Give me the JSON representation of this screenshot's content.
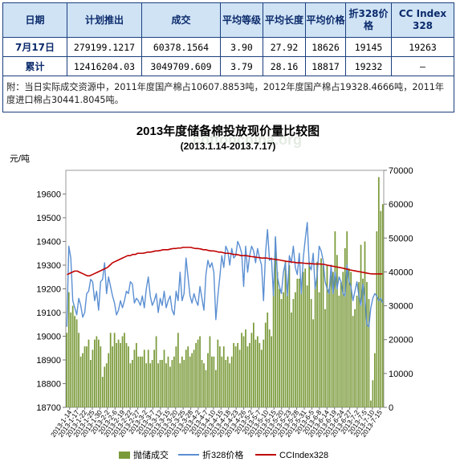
{
  "table": {
    "headers": [
      "日期",
      "计划推出",
      "成交",
      "平均等级",
      "平均长度",
      "平均价格",
      "折328价格",
      "CC Index 328"
    ],
    "rows": [
      {
        "label": "7月17日",
        "values": [
          "279199.1217",
          "60378.1564",
          "3.90",
          "27.92",
          "18626",
          "19145",
          "19263"
        ]
      },
      {
        "label": "累计",
        "values": [
          "12416204.03",
          "3049709.609",
          "3.79",
          "28.16",
          "18817",
          "19232",
          "–"
        ]
      }
    ],
    "note": "附：当日实际成交资源中，2011年度国产棉占10607.8853吨，2012年度国产棉占19328.4666吨，2011年度进口棉占30441.8045吨。"
  },
  "chart_data": {
    "type": "bar+line",
    "title": "2013年度储备棉投放现价量比较图",
    "subtitle": "(2013.1.14-2013.7.17)",
    "ylabel_left": "元/吨",
    "ylim_left": [
      18700,
      19700
    ],
    "yticks_left": [
      18700,
      18800,
      18900,
      19000,
      19100,
      19200,
      19300,
      19400,
      19500,
      19600
    ],
    "ylim_right": [
      0,
      70000
    ],
    "yticks_right": [
      0,
      10000,
      20000,
      30000,
      40000,
      50000,
      60000,
      70000
    ],
    "x_tick_labels": [
      "2013-1-14",
      "2013-1-17",
      "2013-1-22",
      "2013-1-25",
      "2013-1-30",
      "2013-2-2",
      "2013-2-6",
      "2013-2-19",
      "2013-2-22",
      "2013-2-27",
      "2013-3-2",
      "2013-3-7",
      "2013-3-12",
      "2013-3-15",
      "2013-3-20",
      "2013-3-25",
      "2013-3-28",
      "2013-4-2",
      "2013-4-7",
      "2013-4-10",
      "2013-4-15",
      "2013-4-18",
      "2013-4-23",
      "2013-4-26",
      "2013-5-2",
      "2013-5-7",
      "2013-5-10",
      "2013-5-15",
      "2013-5-20",
      "2013-5-23",
      "2013-5-28",
      "2013-5-31",
      "2013-6-5",
      "2013-6-8",
      "2013-6-14",
      "2013-6-19",
      "2013-6-24",
      "2013-6-27",
      "2013-7-2",
      "2013-7-5",
      "2013-7-10",
      "2013-7-15"
    ],
    "series": [
      {
        "name": "抛储成交",
        "type": "bar",
        "axis": "right",
        "values": [
          22000,
          34000,
          28000,
          30000,
          27000,
          26000,
          22000,
          15000,
          16000,
          18000,
          18000,
          20000,
          14000,
          17000,
          20000,
          21000,
          20000,
          18000,
          9000,
          12000,
          13000,
          16000,
          22000,
          18000,
          22000,
          19000,
          20000,
          19000,
          21000,
          22000,
          19000,
          18000,
          13000,
          14000,
          17000,
          19000,
          15000,
          15000,
          15000,
          17000,
          13000,
          17000,
          13000,
          14000,
          17000,
          21000,
          13000,
          14000,
          14000,
          17000,
          13000,
          15000,
          12000,
          14000,
          15000,
          18000,
          22000,
          13000,
          15000,
          14000,
          17000,
          18000,
          15000,
          16000,
          17000,
          19000,
          20000,
          21000,
          14000,
          13000,
          11000,
          16000,
          21000,
          15000,
          15000,
          11000,
          20000,
          18000,
          15000,
          18000,
          14000,
          15000,
          13000,
          15000,
          19000,
          18000,
          19000,
          17000,
          22000,
          21000,
          23000,
          18000,
          19000,
          22000,
          25000,
          20000,
          21000,
          19000,
          17000,
          20000,
          25000,
          28000,
          23000,
          21000,
          37000,
          50000,
          40000,
          35000,
          32000,
          34000,
          43000,
          33000,
          42000,
          28000,
          32000,
          34000,
          38000,
          38000,
          36000,
          40000,
          41000,
          36000,
          43000,
          32000,
          26000,
          37000,
          43000,
          34000,
          44000,
          42000,
          29000,
          42000,
          35000,
          39000,
          40000,
          52000,
          45000,
          33000,
          37000,
          40000,
          47000,
          52000,
          41000,
          40000,
          27000,
          29000,
          33000,
          37000,
          48000,
          38000,
          49000,
          37000,
          32000,
          2000,
          8000,
          16000,
          52000,
          68000,
          58000,
          60000
        ]
      },
      {
        "name": "折328价格",
        "type": "line",
        "axis": "left",
        "values": [
          19040,
          19380,
          19330,
          19150,
          19120,
          19090,
          19160,
          19130,
          19080,
          19100,
          19180,
          19190,
          19240,
          19230,
          19150,
          19190,
          19110,
          19230,
          19240,
          19310,
          19180,
          19250,
          19210,
          19170,
          19140,
          19090,
          19110,
          19150,
          19120,
          19150,
          19190,
          19180,
          19230,
          19220,
          19140,
          19160,
          19150,
          19130,
          19170,
          19120,
          19200,
          19250,
          19170,
          19130,
          19150,
          19180,
          19100,
          19160,
          19130,
          19190,
          19120,
          19150,
          19170,
          19110,
          19090,
          19190,
          19150,
          19270,
          19150,
          19180,
          19330,
          19250,
          19170,
          19140,
          19180,
          19150,
          19130,
          19210,
          19160,
          19110,
          19260,
          19320,
          19290,
          19310,
          19270,
          19070,
          19170,
          19250,
          19340,
          19290,
          19380,
          19360,
          19300,
          19370,
          19330,
          19340,
          19400,
          19380,
          19350,
          19210,
          19380,
          19270,
          19340,
          19380,
          19360,
          19310,
          19370,
          19330,
          19300,
          19150,
          19350,
          19450,
          19320,
          19330,
          19170,
          19420,
          19250,
          19210,
          19180,
          19270,
          19310,
          19170,
          19340,
          19310,
          19380,
          19290,
          19260,
          19350,
          19180,
          19330,
          19410,
          19480,
          19300,
          19280,
          19350,
          19200,
          19260,
          19380,
          19360,
          19320,
          19230,
          19200,
          19180,
          19300,
          19180,
          19270,
          19200,
          19250,
          19230,
          19180,
          19170,
          19300,
          19230,
          19210,
          19150,
          19190,
          19230,
          19170,
          19130,
          19220,
          19160,
          19050,
          19040,
          19120,
          19160,
          19180,
          19170,
          19150,
          19160,
          19140
        ]
      },
      {
        "name": "CCIndex328",
        "type": "line",
        "axis": "left",
        "values": [
          19260,
          19265,
          19270,
          19275,
          19275,
          19270,
          19265,
          19260,
          19255,
          19255,
          19260,
          19265,
          19270,
          19275,
          19280,
          19285,
          19290,
          19300,
          19310,
          19315,
          19320,
          19325,
          19330,
          19335,
          19340,
          19340,
          19345,
          19345,
          19350,
          19350,
          19350,
          19352,
          19355,
          19355,
          19357,
          19360,
          19360,
          19362,
          19365,
          19365,
          19365,
          19368,
          19370,
          19370,
          19372,
          19372,
          19375,
          19375,
          19375,
          19375,
          19372,
          19370,
          19370,
          19368,
          19365,
          19365,
          19362,
          19360,
          19360,
          19358,
          19355,
          19355,
          19352,
          19350,
          19350,
          19348,
          19345,
          19345,
          19343,
          19340,
          19340,
          19340,
          19338,
          19336,
          19335,
          19333,
          19332,
          19330,
          19330,
          19330,
          19328,
          19326,
          19325,
          19323,
          19322,
          19320,
          19318,
          19316,
          19315,
          19313,
          19312,
          19310,
          19310,
          19309,
          19308,
          19307,
          19306,
          19306,
          19305,
          19305,
          19305,
          19304,
          19303,
          19300,
          19298,
          19296,
          19294,
          19292,
          19290,
          19288,
          19285,
          19283,
          19280,
          19278,
          19276,
          19274,
          19272,
          19270,
          19268,
          19266,
          19264,
          19263,
          19263,
          19263,
          19263,
          19263
        ]
      }
    ]
  },
  "colors": {
    "table_header_bg": "#cfe3f5",
    "table_border": "#1b3f7d",
    "bar": "#7a9a3a",
    "line_328": "#5b8fd2",
    "line_cc": "#c00000"
  }
}
